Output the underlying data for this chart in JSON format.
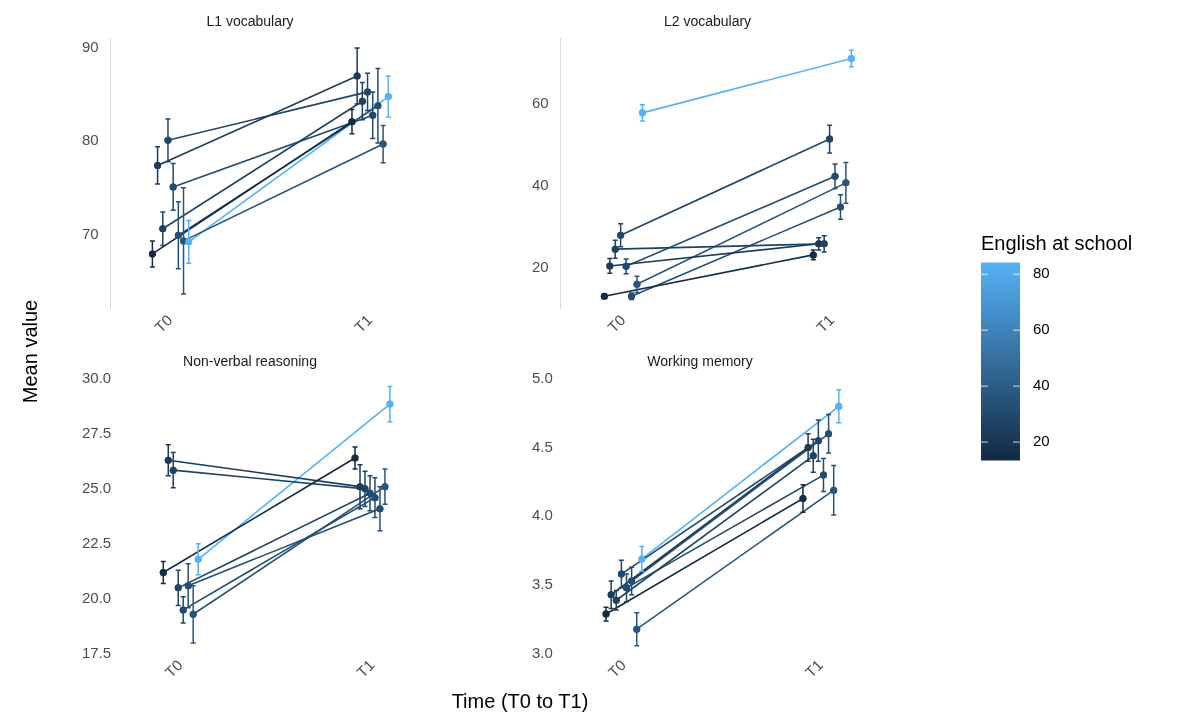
{
  "chart_data": [
    {
      "type": "line",
      "title": "L1 vocabulary",
      "ylabel": "Mean value",
      "categories": [
        "T0",
        "T1"
      ],
      "ylim": [
        62,
        91
      ],
      "yticks": [
        70,
        80,
        90
      ],
      "marker": "circle",
      "series": [
        {
          "color": "#132b43",
          "values": [
            67.9,
            82.1
          ],
          "errors": [
            1.4,
            1.3
          ]
        },
        {
          "color": "#1c3b59",
          "values": [
            77.4,
            87.0
          ],
          "errors": [
            2.0,
            3.0
          ]
        },
        {
          "color": "#1f4263",
          "values": [
            70.6,
            84.3
          ],
          "errors": [
            1.8,
            2.0
          ]
        },
        {
          "color": "#21466a",
          "values": [
            80.1,
            85.3
          ],
          "errors": [
            2.3,
            2.0
          ]
        },
        {
          "color": "#234a6f",
          "values": [
            75.1,
            82.8
          ],
          "errors": [
            2.5,
            2.5
          ]
        },
        {
          "color": "#254e75",
          "values": [
            69.9,
            83.8
          ],
          "errors": [
            3.6,
            4.0
          ]
        },
        {
          "color": "#28557e",
          "values": [
            69.3,
            79.7
          ],
          "errors": [
            5.7,
            2.0
          ]
        },
        {
          "color": "#56b1f7",
          "values": [
            69.2,
            84.8
          ],
          "errors": [
            2.3,
            2.2
          ]
        }
      ]
    },
    {
      "type": "line",
      "title": "L2 vocabulary",
      "categories": [
        "T0",
        "T1"
      ],
      "ylim": [
        10,
        76
      ],
      "yticks": [
        20,
        40,
        60
      ],
      "marker": "circle",
      "clabel": "English at school",
      "clim": [
        13.6,
        84
      ],
      "cticks": [
        20,
        40,
        60,
        80
      ],
      "series": [
        {
          "color": "#132b43",
          "values": [
            13.1,
            23.2
          ],
          "errors": [
            0.5,
            1.2
          ]
        },
        {
          "color": "#1c3b59",
          "values": [
            20.5,
            25.9
          ],
          "errors": [
            1.8,
            1.5
          ]
        },
        {
          "color": "#1f4263",
          "values": [
            24.6,
            25.9
          ],
          "errors": [
            2.2,
            2.0
          ]
        },
        {
          "color": "#21466a",
          "values": [
            28.0,
            51.5
          ],
          "errors": [
            2.8,
            3.4
          ]
        },
        {
          "color": "#234a6f",
          "values": [
            20.4,
            42.4
          ],
          "errors": [
            1.8,
            3.0
          ]
        },
        {
          "color": "#254e75",
          "values": [
            13.1,
            34.9
          ],
          "errors": [
            0.8,
            3.0
          ]
        },
        {
          "color": "#28557e",
          "values": [
            16.0,
            40.8
          ],
          "errors": [
            2.0,
            5.0
          ]
        },
        {
          "color": "#56b1f7",
          "values": [
            57.9,
            71.2
          ],
          "errors": [
            2.0,
            2.0
          ]
        }
      ]
    },
    {
      "type": "line",
      "title": "Non-verbal reasoning",
      "xlabel": "Time (T0 to T1)",
      "categories": [
        "T0",
        "T1"
      ],
      "ylim": [
        17.5,
        30
      ],
      "yticks": [
        {
          "value": 17.5,
          "label": "17.5"
        },
        {
          "value": 20,
          "label": "20.0"
        },
        {
          "value": 22.5,
          "label": "22.5"
        },
        {
          "value": 25,
          "label": "25.0"
        },
        {
          "value": 27.5,
          "label": "27.5"
        },
        {
          "value": 30,
          "label": "30.0"
        }
      ],
      "marker": "circle",
      "series": [
        {
          "color": "#132b43",
          "values": [
            21.2,
            26.4
          ],
          "errors": [
            0.5,
            0.5
          ]
        },
        {
          "color": "#1c3b59",
          "values": [
            26.3,
            25.1
          ],
          "errors": [
            0.7,
            1.0
          ]
        },
        {
          "color": "#1f4263",
          "values": [
            25.85,
            25.0
          ],
          "errors": [
            0.8,
            0.8
          ]
        },
        {
          "color": "#21466a",
          "values": [
            20.5,
            24.8
          ],
          "errors": [
            0.8,
            0.8
          ]
        },
        {
          "color": "#234a6f",
          "values": [
            19.5,
            24.6
          ],
          "errors": [
            0.6,
            0.9
          ]
        },
        {
          "color": "#254e75",
          "values": [
            20.6,
            24.1
          ],
          "errors": [
            1.0,
            1.0
          ]
        },
        {
          "color": "#28557e",
          "values": [
            19.3,
            25.1
          ],
          "errors": [
            1.3,
            0.8
          ]
        },
        {
          "color": "#56b1f7",
          "values": [
            21.8,
            28.85
          ],
          "errors": [
            0.7,
            0.8
          ]
        }
      ]
    },
    {
      "type": "line",
      "title": "Working memory",
      "categories": [
        "T0",
        "T1"
      ],
      "ylim": [
        3,
        5
      ],
      "yticks": [
        {
          "value": 3,
          "label": "3.0"
        },
        {
          "value": 3.5,
          "label": "3.5"
        },
        {
          "value": 4,
          "label": "4.0"
        },
        {
          "value": 4.5,
          "label": "4.5"
        },
        {
          "value": 5,
          "label": "5.0"
        }
      ],
      "marker": "circle",
      "series": [
        {
          "color": "#132b43",
          "values": [
            3.29,
            4.13
          ],
          "errors": [
            0.05,
            0.1
          ]
        },
        {
          "color": "#1c3b59",
          "values": [
            3.43,
            4.5
          ],
          "errors": [
            0.1,
            0.1
          ]
        },
        {
          "color": "#1f4263",
          "values": [
            3.39,
            4.44
          ],
          "errors": [
            0.07,
            0.12
          ]
        },
        {
          "color": "#21466a",
          "values": [
            3.58,
            4.55
          ],
          "errors": [
            0.1,
            0.15
          ]
        },
        {
          "color": "#234a6f",
          "values": [
            3.48,
            4.3
          ],
          "errors": [
            0.1,
            0.12
          ]
        },
        {
          "color": "#254e75",
          "values": [
            3.53,
            4.6
          ],
          "errors": [
            0.1,
            0.14
          ]
        },
        {
          "color": "#28557e",
          "values": [
            3.18,
            4.19
          ],
          "errors": [
            0.12,
            0.18
          ]
        },
        {
          "color": "#56b1f7",
          "values": [
            3.69,
            4.8
          ],
          "errors": [
            0.09,
            0.12
          ]
        }
      ]
    }
  ]
}
